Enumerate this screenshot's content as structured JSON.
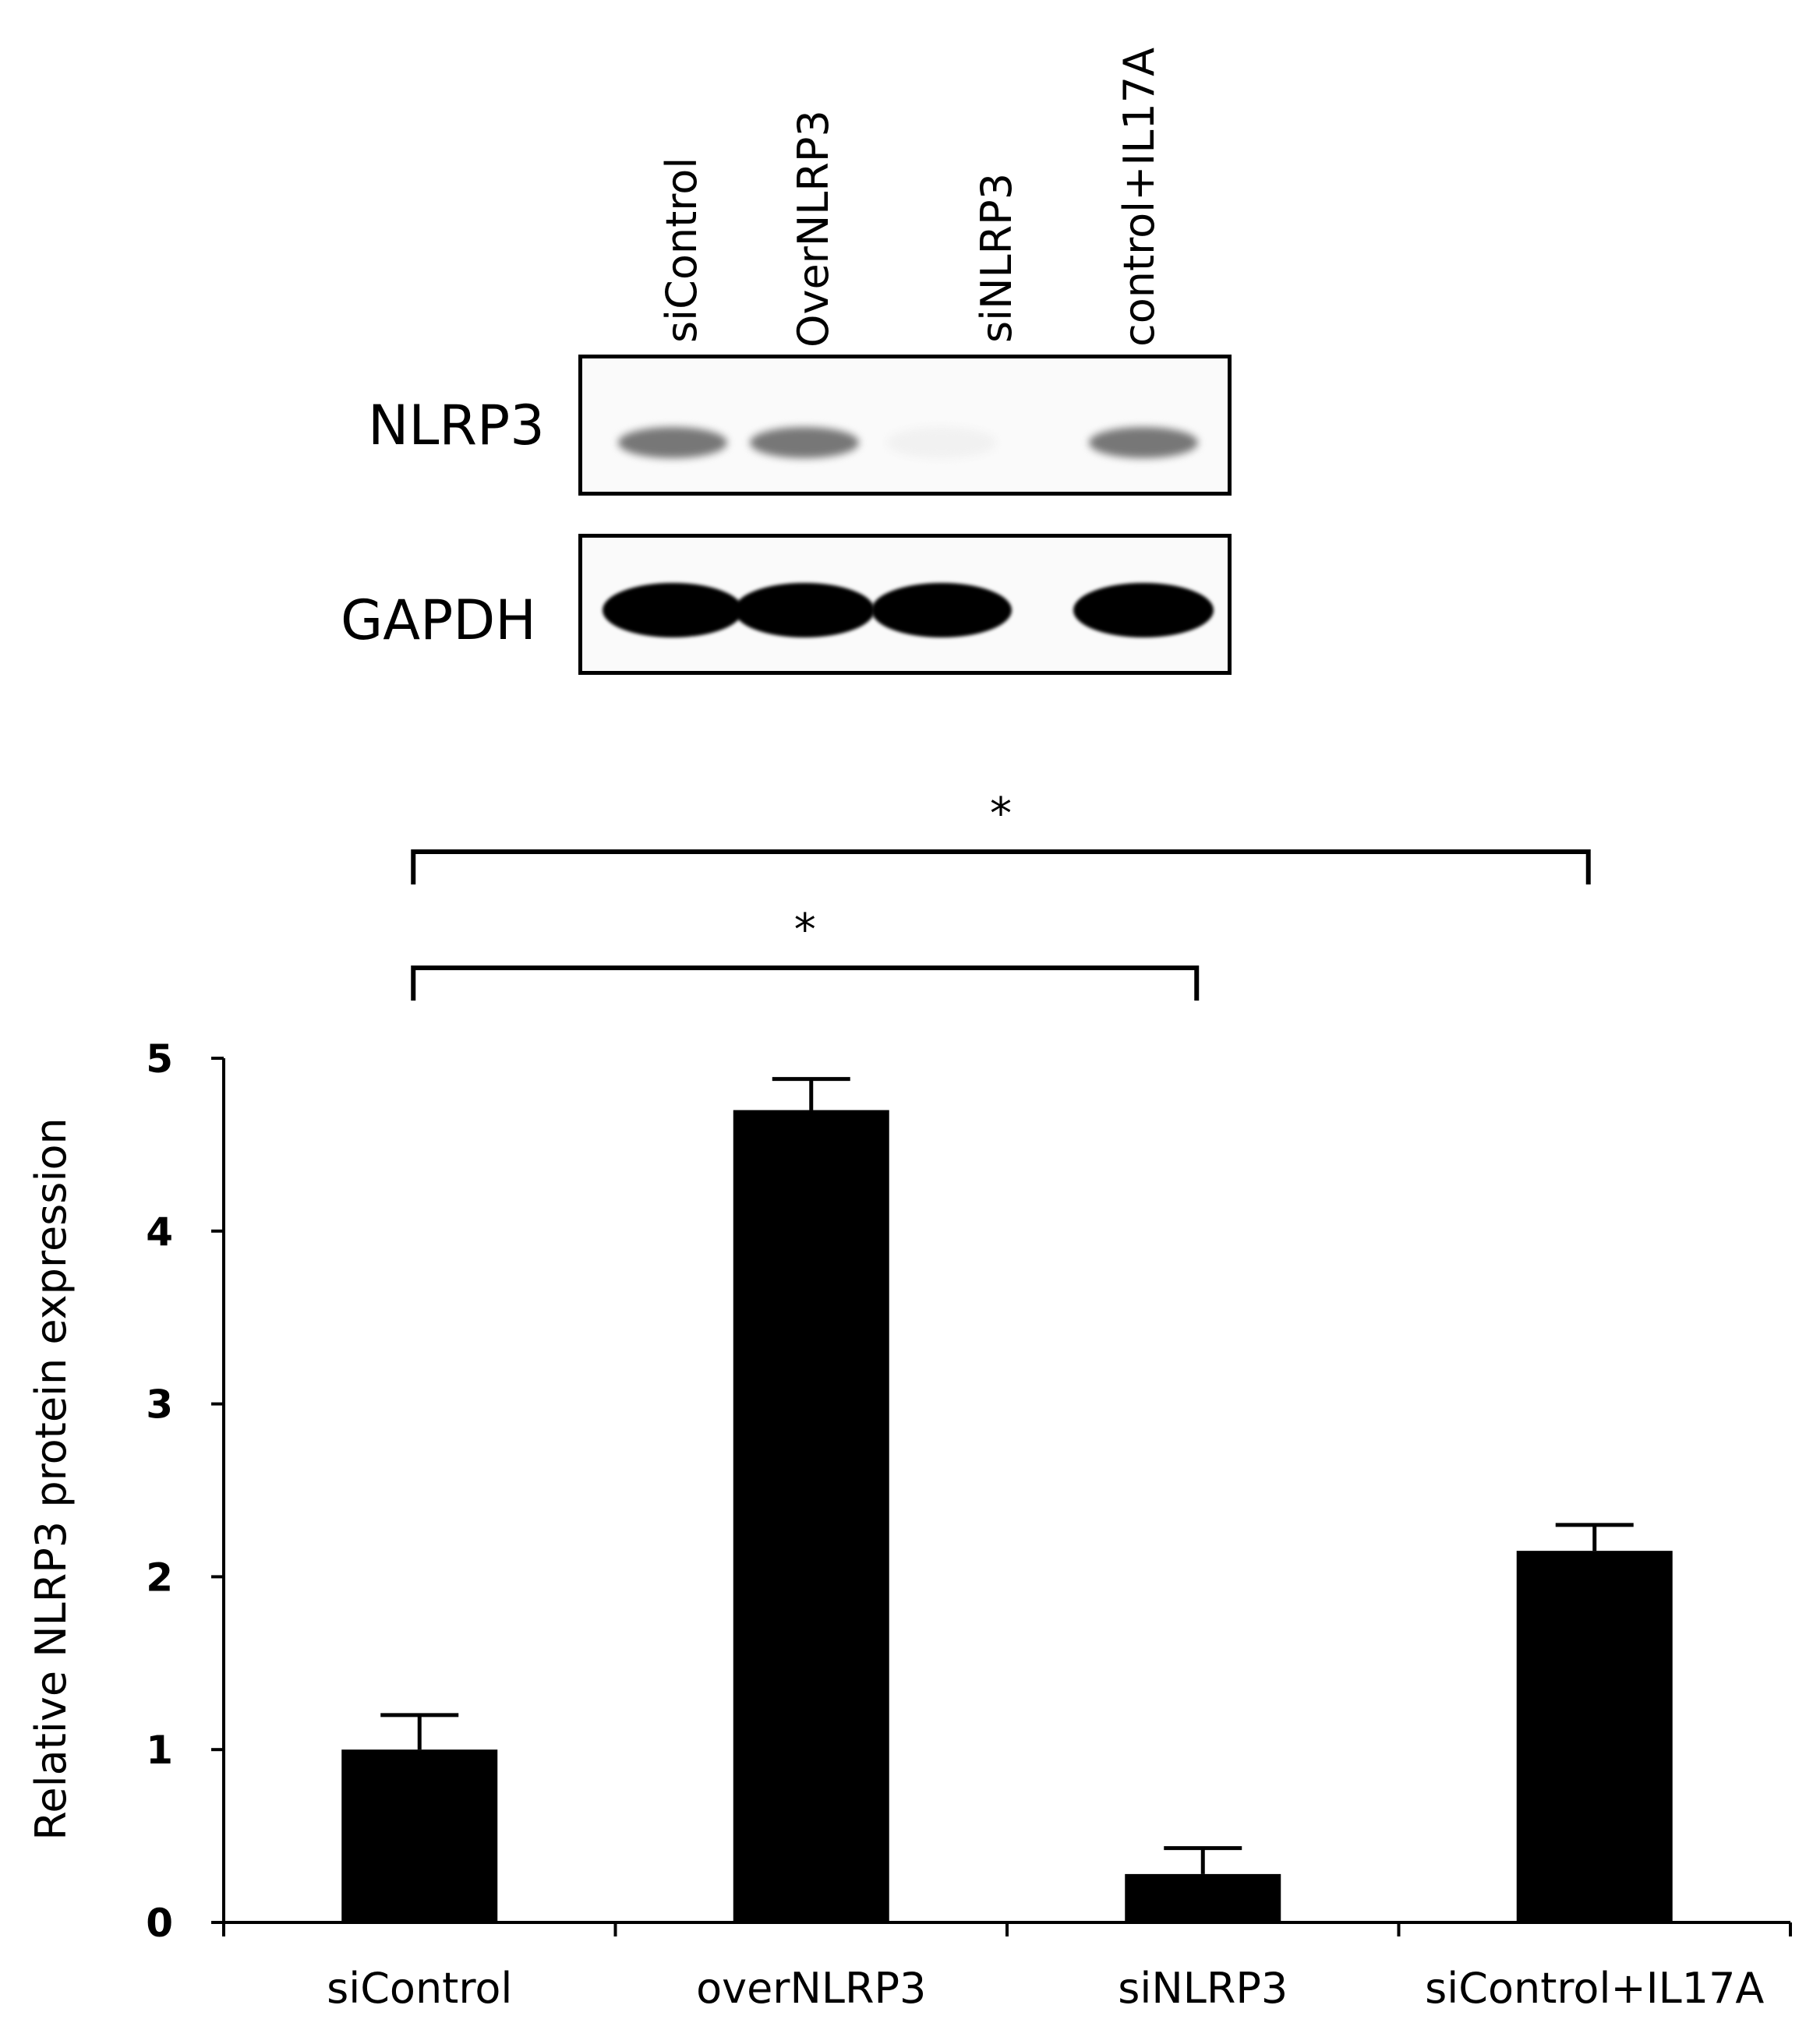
{
  "blot": {
    "lanes": [
      "siControl",
      "OverNLRP3",
      "siNLRP3",
      "control+IL17A"
    ],
    "rows": [
      {
        "label": "NLRP3",
        "intensities": [
          0.8,
          0.8,
          0.08,
          0.8
        ]
      },
      {
        "label": "GAPDH",
        "intensities": [
          1.0,
          1.0,
          1.0,
          1.0
        ]
      }
    ]
  },
  "significance": [
    {
      "from": "siControl",
      "to": "siControl+IL17A",
      "mark": "*"
    },
    {
      "from": "siControl",
      "to": "siNLRP3",
      "mark": "*"
    }
  ],
  "chart_data": {
    "type": "bar",
    "categories": [
      "siControl",
      "overNLRP3",
      "siNLRP3",
      "siControl+IL17A"
    ],
    "values": [
      1.0,
      4.7,
      0.28,
      2.15
    ],
    "errors": [
      0.2,
      0.18,
      0.15,
      0.15
    ],
    "ylabel": "Relative NLRP3 protein expression",
    "xlabel": "",
    "title": "",
    "ylim": [
      0,
      5
    ],
    "yticks": [
      0,
      1,
      2,
      3,
      4,
      5
    ],
    "bar_color": "#000000",
    "grid": false,
    "legend": "none"
  }
}
